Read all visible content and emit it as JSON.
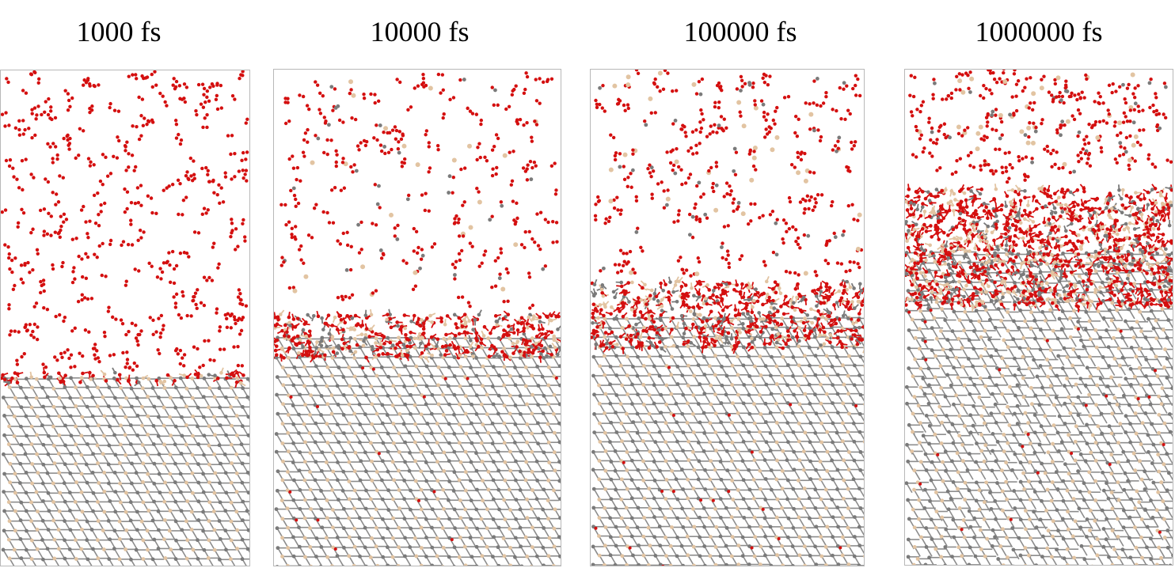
{
  "panels": [
    {
      "title": "1000 fs",
      "interface": 0.62
    },
    {
      "title": "10000 fs",
      "interface": 0.54
    },
    {
      "title": "100000 fs",
      "interface": 0.5
    },
    {
      "title": "1000000 fs",
      "interface": 0.37
    }
  ],
  "colors": {
    "oxygen": "#d40f0f",
    "silicon": "#e2c4a2",
    "carbon": "#7a7a7a",
    "bond": "#8c8c8c",
    "frame": "#b8b8b8"
  }
}
